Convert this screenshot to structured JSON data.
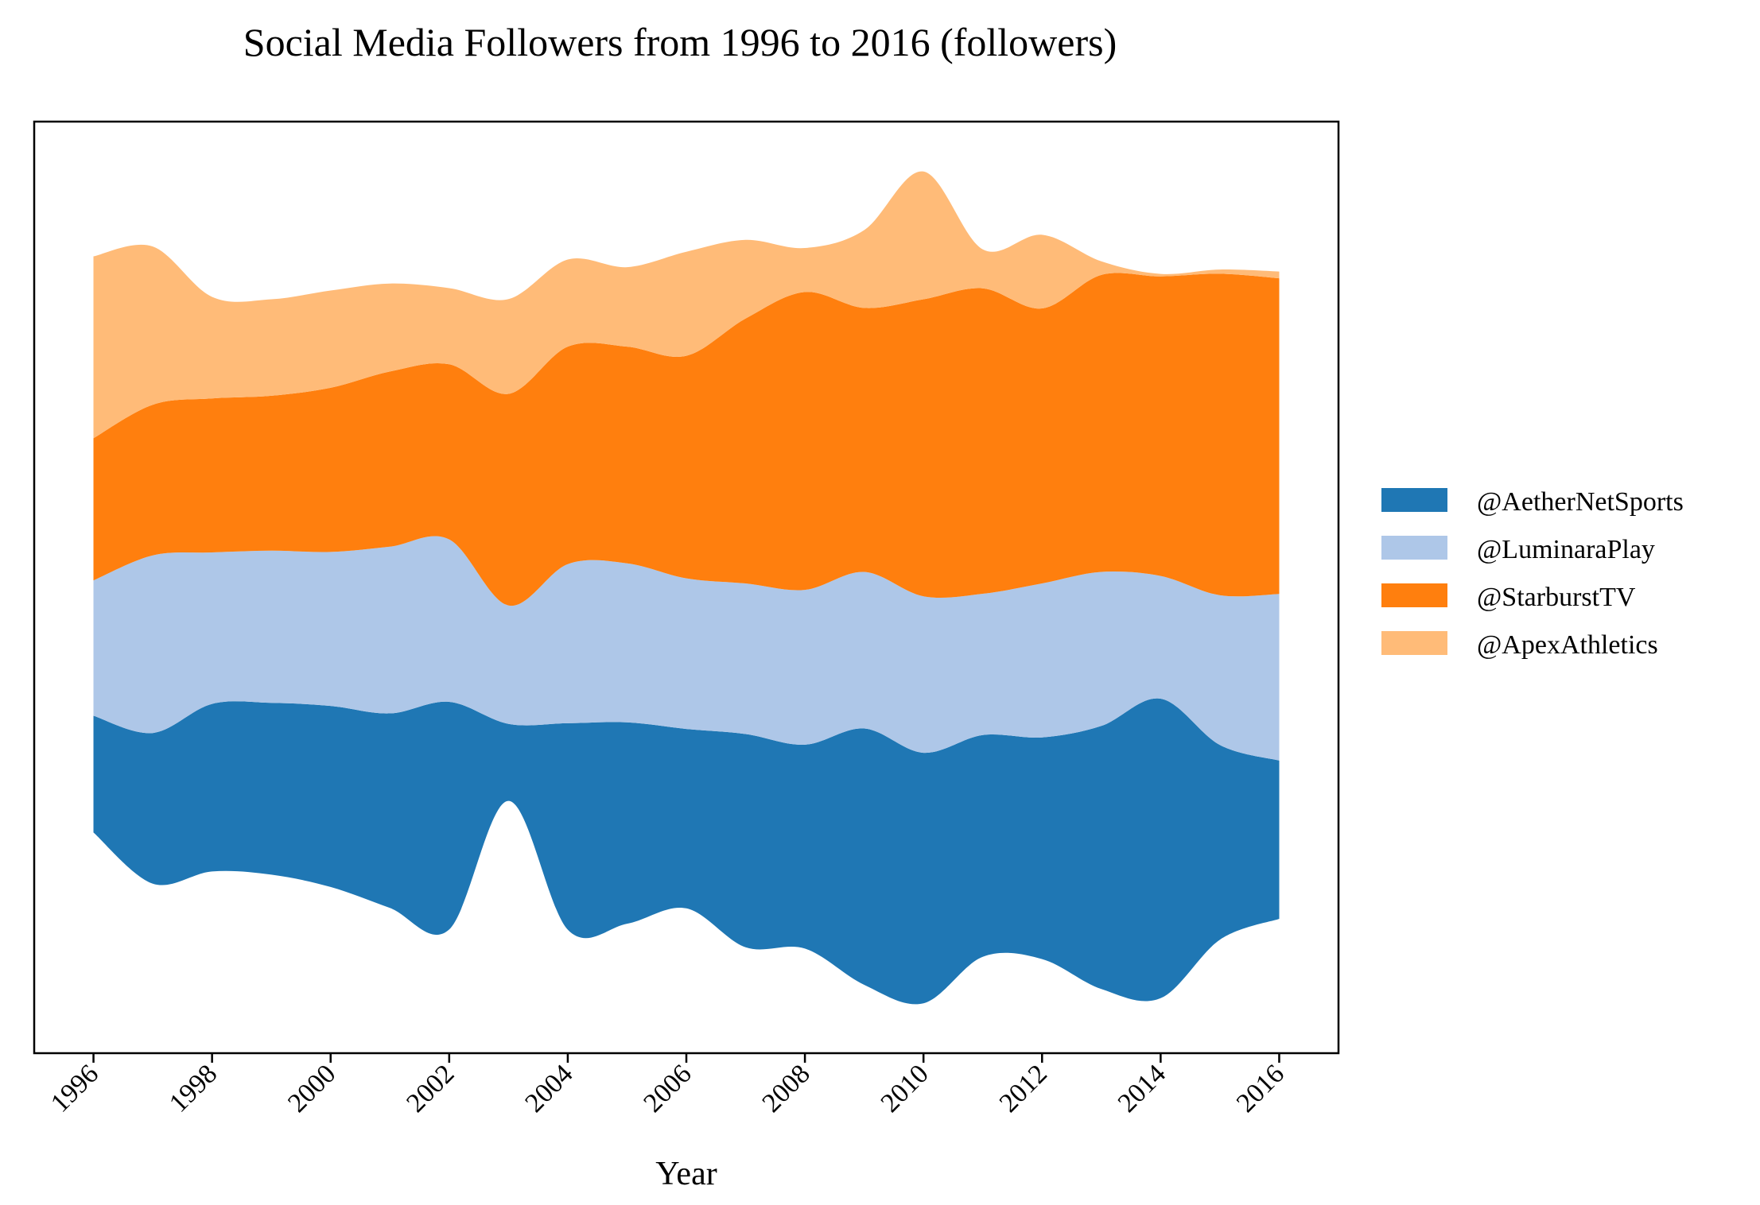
{
  "chart_data": {
    "type": "area",
    "subtype": "streamgraph",
    "title": "Social Media Followers from 1996 to 2016 (followers)",
    "xlabel": "Year",
    "ylabel": "",
    "x": [
      1996,
      1997,
      1998,
      1999,
      2000,
      2001,
      2002,
      2003,
      2004,
      2005,
      2006,
      2007,
      2008,
      2009,
      2010,
      2011,
      2012,
      2013,
      2014,
      2015,
      2016
    ],
    "x_ticks": [
      "1996",
      "1998",
      "2000",
      "2002",
      "2004",
      "2006",
      "2008",
      "2010",
      "2012",
      "2014",
      "2016"
    ],
    "xlim": [
      1995,
      2017
    ],
    "y_ticks_shown": false,
    "baseline": "wiggle",
    "grid": false,
    "legend_position": "right",
    "series": [
      {
        "name": "@AetherNetSports",
        "color": "#1f77b4",
        "values": [
          1380,
          1780,
          1980,
          2030,
          2140,
          2300,
          2690,
          910,
          2440,
          2380,
          2120,
          2520,
          2410,
          3030,
          2960,
          2620,
          2620,
          3110,
          3540,
          2300,
          1870
        ]
      },
      {
        "name": "@LuminaraPlay",
        "color": "#aec7e8",
        "values": [
          1600,
          2100,
          1790,
          1800,
          1820,
          1970,
          1920,
          1400,
          1880,
          1880,
          1780,
          1780,
          1830,
          1850,
          1850,
          1670,
          1820,
          1820,
          1450,
          1770,
          1970
        ]
      },
      {
        "name": "@StarburstTV",
        "color": "#ff7f0e",
        "values": [
          1680,
          1780,
          1820,
          1830,
          1940,
          2070,
          2070,
          2500,
          2570,
          2560,
          2630,
          3130,
          3520,
          3120,
          3510,
          3610,
          3250,
          3510,
          3540,
          3800,
          3730
        ]
      },
      {
        "name": "@ApexAthletics",
        "color": "#ffbb78",
        "values": [
          2150,
          1870,
          1200,
          1140,
          1150,
          1040,
          900,
          1120,
          1030,
          940,
          1230,
          930,
          520,
          920,
          1510,
          460,
          870,
          160,
          30,
          50,
          80
        ]
      }
    ]
  }
}
